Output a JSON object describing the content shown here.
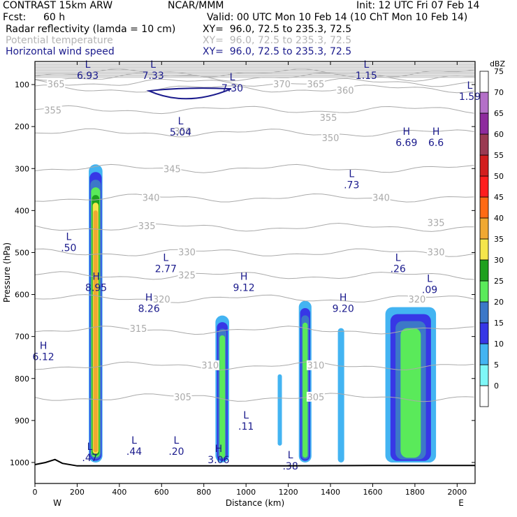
{
  "header": {
    "title": "CONTRAST 15km ARW",
    "org": "NCAR/MMM",
    "init": "Init: 12 UTC Fri 07 Feb 14",
    "fcst_label": "Fcst:",
    "fcst_value": "60 h",
    "valid": "Valid: 00 UTC Mon 10 Feb 14 (10 ChT Mon 10 Feb 14)",
    "fields": [
      {
        "name": "Radar reflectivity (lamda = 10 cm)",
        "xy": "XY=  96.0, 72.5 to 235.3, 72.5"
      },
      {
        "name": "Potential temperature",
        "xy": "XY=  96.0, 72.5 to 235.3, 72.5"
      },
      {
        "name": "Horizontal wind speed",
        "xy": "XY=  96.0, 72.5 to 235.3, 72.5"
      }
    ]
  },
  "colors": {
    "theta": "#aaaaaa",
    "wind": "#1a1a8c",
    "terrain": "#000000",
    "dbz_scale": [
      "#ffffff",
      "#7ef7f7",
      "#43b4f2",
      "#3737e6",
      "#3c78c8",
      "#5aea5a",
      "#1ea01e",
      "#f5e64b",
      "#f0a832",
      "#ff6a14",
      "#ff1e1e",
      "#d21e1e",
      "#9a3a52",
      "#8e2b9e",
      "#b470c8",
      "#ffffff"
    ]
  },
  "chart_data": {
    "type": "heatmap",
    "xlabel": "Distance (km)",
    "ylabel": "Pressure (hPa)",
    "x_ticks": [
      0,
      200,
      400,
      600,
      800,
      1000,
      1200,
      1400,
      1600,
      1800,
      2000
    ],
    "xlim": [
      0,
      2085
    ],
    "x_end_labels": {
      "left": "W",
      "right": "E"
    },
    "y_ticks": [
      100,
      200,
      300,
      400,
      500,
      600,
      700,
      800,
      900,
      1000
    ],
    "ylim": [
      1050,
      45
    ],
    "colorbar": {
      "unit": "dBZ",
      "ticks": [
        0,
        5,
        10,
        15,
        20,
        25,
        30,
        35,
        40,
        45,
        50,
        55,
        60,
        65,
        70,
        75
      ]
    },
    "reflectivity_cells": [
      {
        "x": [
          255,
          320
        ],
        "p": [
          290,
          1000
        ],
        "max_dbz": 35
      },
      {
        "x": [
          855,
          920
        ],
        "p": [
          650,
          1000
        ],
        "max_dbz": 20
      },
      {
        "x": [
          1150,
          1170
        ],
        "p": [
          790,
          960
        ],
        "max_dbz": 5
      },
      {
        "x": [
          1250,
          1310
        ],
        "p": [
          615,
          1000
        ],
        "max_dbz": 20
      },
      {
        "x": [
          1435,
          1465
        ],
        "p": [
          680,
          1000
        ],
        "max_dbz": 5
      },
      {
        "x": [
          1660,
          1900
        ],
        "p": [
          630,
          1000
        ],
        "max_dbz": 20
      }
    ],
    "theta_contours": [
      {
        "level": "305",
        "p": 845
      },
      {
        "level": "310",
        "p": 770
      },
      {
        "level": "315",
        "p": 685
      },
      {
        "level": "320",
        "p": 610
      },
      {
        "level": "325",
        "p": 555
      },
      {
        "level": "330",
        "p": 500
      },
      {
        "level": "335",
        "p": 440
      },
      {
        "level": "340",
        "p": 370
      },
      {
        "level": "345",
        "p": 300
      },
      {
        "level": "350",
        "p": 215
      },
      {
        "level": "355",
        "p": 160
      },
      {
        "level": "360",
        "p": 110
      },
      {
        "level": "365",
        "p": 95
      },
      {
        "level": "370",
        "p": 82
      },
      {
        "level": "375",
        "p": 72
      }
    ],
    "theta_labels": [
      {
        "text": "365",
        "x": 100,
        "p": 100
      },
      {
        "text": "355",
        "x": 85,
        "p": 162
      },
      {
        "text": "350",
        "x": 700,
        "p": 212
      },
      {
        "text": "345",
        "x": 650,
        "p": 302
      },
      {
        "text": "340",
        "x": 550,
        "p": 370
      },
      {
        "text": "335",
        "x": 530,
        "p": 438
      },
      {
        "text": "330",
        "x": 720,
        "p": 500
      },
      {
        "text": "325",
        "x": 720,
        "p": 555
      },
      {
        "text": "320",
        "x": 600,
        "p": 612
      },
      {
        "text": "315",
        "x": 490,
        "p": 682
      },
      {
        "text": "310",
        "x": 830,
        "p": 770
      },
      {
        "text": "305",
        "x": 700,
        "p": 845
      },
      {
        "text": "370",
        "x": 1170,
        "p": 100
      },
      {
        "text": "365",
        "x": 1330,
        "p": 100
      },
      {
        "text": "360",
        "x": 1470,
        "p": 115
      },
      {
        "text": "355",
        "x": 1390,
        "p": 180
      },
      {
        "text": "350",
        "x": 1400,
        "p": 228
      },
      {
        "text": "340",
        "x": 1640,
        "p": 370
      },
      {
        "text": "335",
        "x": 1900,
        "p": 430
      },
      {
        "text": "330",
        "x": 1900,
        "p": 500
      },
      {
        "text": "320",
        "x": 1810,
        "p": 612
      },
      {
        "text": "310",
        "x": 1330,
        "p": 770
      },
      {
        "text": "305",
        "x": 1330,
        "p": 845
      }
    ],
    "wind_jet_contour": {
      "level": "7.30",
      "x": [
        540,
        720,
        930
      ],
      "p": [
        115,
        138,
        110
      ]
    },
    "wind_labels": [
      {
        "kind": "L",
        "value": "6.93",
        "x": 250,
        "p": 70
      },
      {
        "kind": "L",
        "value": "7.33",
        "x": 560,
        "p": 70
      },
      {
        "kind": "L",
        "value": "7.30",
        "x": 935,
        "p": 100
      },
      {
        "kind": "L",
        "value": "1.15",
        "x": 1570,
        "p": 70
      },
      {
        "kind": "L",
        "value": "1.59",
        "x": 2060,
        "p": 120
      },
      {
        "kind": "L",
        "value": "5.04",
        "x": 690,
        "p": 205
      },
      {
        "kind": "H",
        "value": "6.69",
        "x": 1760,
        "p": 230
      },
      {
        "kind": "H",
        "value": "6.6",
        "x": 1900,
        "p": 230
      },
      {
        "kind": "L",
        "value": ".73",
        "x": 1500,
        "p": 330
      },
      {
        "kind": "L",
        "value": ".50",
        "x": 160,
        "p": 480
      },
      {
        "kind": "L",
        "value": "2.77",
        "x": 620,
        "p": 530
      },
      {
        "kind": "L",
        "value": ".26",
        "x": 1720,
        "p": 530
      },
      {
        "kind": "H",
        "value": "8.95",
        "x": 290,
        "p": 575
      },
      {
        "kind": "H",
        "value": "9.12",
        "x": 990,
        "p": 575
      },
      {
        "kind": "L",
        "value": ".09",
        "x": 1870,
        "p": 580
      },
      {
        "kind": "H",
        "value": "8.26",
        "x": 540,
        "p": 625
      },
      {
        "kind": "H",
        "value": "9.20",
        "x": 1460,
        "p": 625
      },
      {
        "kind": "H",
        "value": "6.12",
        "x": 40,
        "p": 740
      },
      {
        "kind": "L",
        "value": ".11",
        "x": 1000,
        "p": 905
      },
      {
        "kind": "L",
        "value": ".44",
        "x": 470,
        "p": 965
      },
      {
        "kind": "L",
        "value": ".20",
        "x": 670,
        "p": 965
      },
      {
        "kind": "L",
        "value": ".47",
        "x": 260,
        "p": 980
      },
      {
        "kind": "H",
        "value": "3.06",
        "x": 870,
        "p": 985
      },
      {
        "kind": "L",
        "value": ".38",
        "x": 1210,
        "p": 1000
      }
    ],
    "terrain": {
      "x": [
        0,
        50,
        95,
        130,
        200,
        400,
        800,
        1200,
        1600,
        2085
      ],
      "p": [
        1005,
        1000,
        993,
        1002,
        1008,
        1008,
        1008,
        1008,
        1007,
        1007
      ]
    }
  }
}
